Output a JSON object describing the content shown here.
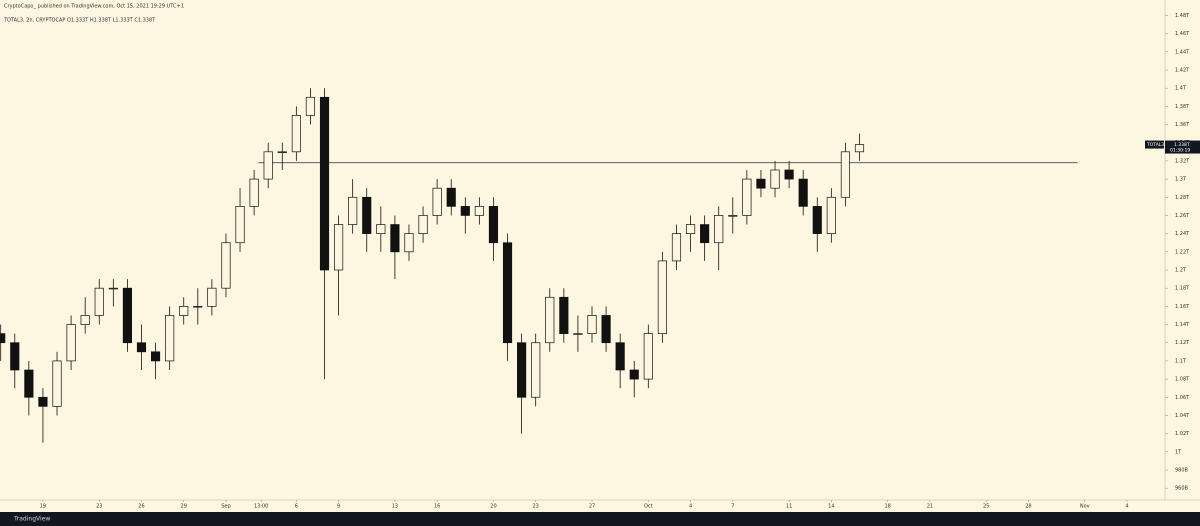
{
  "header": {
    "published": "CryptoCapo_ published on TradingView.com, Oct 15, 2021 19:29 UTC+1",
    "legend": "TOTAL3, 2h, CRYPTOCAP  O1.333T  H1.338T  L1.333T  C1.338T"
  },
  "footer": {
    "brand": "TradingView"
  },
  "chart_data": {
    "type": "candlestick",
    "x": [
      16,
      17,
      18,
      19,
      20,
      21,
      22,
      23,
      24,
      25,
      26,
      27,
      28,
      29,
      30,
      31,
      32,
      33,
      34,
      35,
      36,
      37,
      38,
      39,
      40,
      41,
      42,
      43,
      44,
      45,
      46,
      47,
      48,
      49,
      50,
      51,
      52,
      53,
      54,
      55,
      56,
      57,
      58,
      59,
      60,
      61,
      62,
      63,
      64,
      65,
      66,
      67,
      68,
      69,
      70,
      71,
      72,
      73,
      74,
      75,
      76,
      77
    ],
    "open": [
      1.13,
      1.12,
      1.09,
      1.06,
      1.05,
      1.1,
      1.14,
      1.15,
      1.18,
      1.18,
      1.12,
      1.11,
      1.1,
      1.15,
      1.16,
      1.16,
      1.18,
      1.23,
      1.27,
      1.3,
      1.33,
      1.33,
      1.37,
      1.39,
      1.2,
      1.25,
      1.28,
      1.24,
      1.25,
      1.22,
      1.24,
      1.26,
      1.29,
      1.27,
      1.26,
      1.27,
      1.23,
      1.12,
      1.06,
      1.12,
      1.17,
      1.13,
      1.13,
      1.15,
      1.12,
      1.09,
      1.08,
      1.13,
      1.21,
      1.24,
      1.25,
      1.23,
      1.26,
      1.26,
      1.3,
      1.29,
      1.31,
      1.3,
      1.27,
      1.24,
      1.28,
      1.33
    ],
    "high": [
      1.14,
      1.13,
      1.1,
      1.07,
      1.11,
      1.15,
      1.17,
      1.19,
      1.19,
      1.19,
      1.14,
      1.12,
      1.16,
      1.17,
      1.18,
      1.19,
      1.24,
      1.29,
      1.31,
      1.34,
      1.34,
      1.38,
      1.4,
      1.4,
      1.26,
      1.3,
      1.29,
      1.27,
      1.26,
      1.25,
      1.27,
      1.3,
      1.3,
      1.28,
      1.28,
      1.28,
      1.24,
      1.13,
      1.13,
      1.18,
      1.18,
      1.15,
      1.16,
      1.16,
      1.13,
      1.1,
      1.14,
      1.22,
      1.25,
      1.26,
      1.26,
      1.27,
      1.28,
      1.31,
      1.31,
      1.32,
      1.32,
      1.31,
      1.28,
      1.29,
      1.34,
      1.35
    ],
    "low": [
      1.1,
      1.07,
      1.04,
      1.01,
      1.04,
      1.09,
      1.13,
      1.14,
      1.16,
      1.11,
      1.09,
      1.08,
      1.09,
      1.14,
      1.14,
      1.15,
      1.17,
      1.22,
      1.26,
      1.29,
      1.31,
      1.32,
      1.36,
      1.08,
      1.15,
      1.24,
      1.22,
      1.22,
      1.19,
      1.21,
      1.23,
      1.25,
      1.26,
      1.24,
      1.25,
      1.21,
      1.1,
      1.02,
      1.05,
      1.11,
      1.12,
      1.11,
      1.12,
      1.11,
      1.07,
      1.06,
      1.07,
      1.12,
      1.2,
      1.22,
      1.21,
      1.2,
      1.24,
      1.25,
      1.28,
      1.28,
      1.29,
      1.26,
      1.22,
      1.23,
      1.27,
      1.32
    ],
    "close": [
      1.12,
      1.09,
      1.06,
      1.05,
      1.1,
      1.14,
      1.15,
      1.18,
      1.18,
      1.12,
      1.11,
      1.1,
      1.15,
      1.16,
      1.16,
      1.18,
      1.23,
      1.27,
      1.3,
      1.33,
      1.33,
      1.37,
      1.39,
      1.2,
      1.25,
      1.28,
      1.24,
      1.25,
      1.22,
      1.24,
      1.26,
      1.29,
      1.27,
      1.26,
      1.27,
      1.23,
      1.12,
      1.06,
      1.12,
      1.17,
      1.13,
      1.13,
      1.15,
      1.12,
      1.09,
      1.08,
      1.13,
      1.21,
      1.24,
      1.25,
      1.23,
      1.26,
      1.26,
      1.3,
      1.29,
      1.31,
      1.3,
      1.27,
      1.24,
      1.28,
      1.33,
      1.338
    ],
    "up_color": "#fdf6e0",
    "down_color": "#111111",
    "edge_color": "#111111",
    "xlim": [
      15.95,
      98.7
    ],
    "xticks": [
      19,
      23,
      26,
      29,
      {
        "value": 32,
        "label": "Sep"
      },
      {
        "value": 34.5,
        "label": "13:00"
      },
      {
        "value": 37,
        "label": "6"
      },
      {
        "value": 40,
        "label": "9"
      },
      {
        "value": 44,
        "label": "13"
      },
      {
        "value": 47,
        "label": "16"
      },
      {
        "value": 51,
        "label": "20"
      },
      {
        "value": 54,
        "label": "23"
      },
      {
        "value": 58,
        "label": "27"
      },
      {
        "value": 62,
        "label": "Oct"
      },
      {
        "value": 65,
        "label": "4"
      },
      {
        "value": 68,
        "label": "7"
      },
      {
        "value": 72,
        "label": "11"
      },
      {
        "value": 75,
        "label": "14"
      },
      {
        "value": 79,
        "label": "18"
      },
      {
        "value": 82,
        "label": "21"
      },
      {
        "value": 86,
        "label": "25"
      },
      {
        "value": 89,
        "label": "28"
      },
      {
        "value": 93,
        "label": "Nov"
      },
      {
        "value": 96,
        "label": "4"
      }
    ],
    "ylim": [
      0.947,
      1.497
    ],
    "yticks": [
      {
        "value": 0.96,
        "label": "960B"
      },
      {
        "value": 0.98,
        "label": "980B"
      },
      {
        "value": 1,
        "label": "1T"
      },
      {
        "value": 1.02,
        "label": "1.02T"
      },
      {
        "value": 1.04,
        "label": "1.04T"
      },
      {
        "value": 1.06,
        "label": "1.06T"
      },
      {
        "value": 1.08,
        "label": "1.08T"
      },
      {
        "value": 1.1,
        "label": "1.1T"
      },
      {
        "value": 1.12,
        "label": "1.12T"
      },
      {
        "value": 1.14,
        "label": "1.14T"
      },
      {
        "value": 1.16,
        "label": "1.16T"
      },
      {
        "value": 1.18,
        "label": "1.18T"
      },
      {
        "value": 1.2,
        "label": "1.2T"
      },
      {
        "value": 1.22,
        "label": "1.22T"
      },
      {
        "value": 1.24,
        "label": "1.24T"
      },
      {
        "value": 1.26,
        "label": "1.26T"
      },
      {
        "value": 1.28,
        "label": "1.28T"
      },
      {
        "value": 1.3,
        "label": "1.3T"
      },
      {
        "value": 1.32,
        "label": "1.32T"
      },
      {
        "value": 1.34,
        "label": "1.34T"
      },
      {
        "value": 1.36,
        "label": "1.36T"
      },
      {
        "value": 1.38,
        "label": "1.38T"
      },
      {
        "value": 1.4,
        "label": "1.4T"
      },
      {
        "value": 1.42,
        "label": "1.42T"
      },
      {
        "value": 1.44,
        "label": "1.44T"
      },
      {
        "value": 1.46,
        "label": "1.46T"
      },
      {
        "value": 1.48,
        "label": "1.48T"
      }
    ],
    "hline": {
      "value": 1.318,
      "from": 34.3,
      "to": 92.5,
      "color": "#2a2e39"
    },
    "price_tag": {
      "symbol": "TOTAL3",
      "value": 1.338,
      "label": "1.338T",
      "countdown": "01:30:19"
    }
  }
}
